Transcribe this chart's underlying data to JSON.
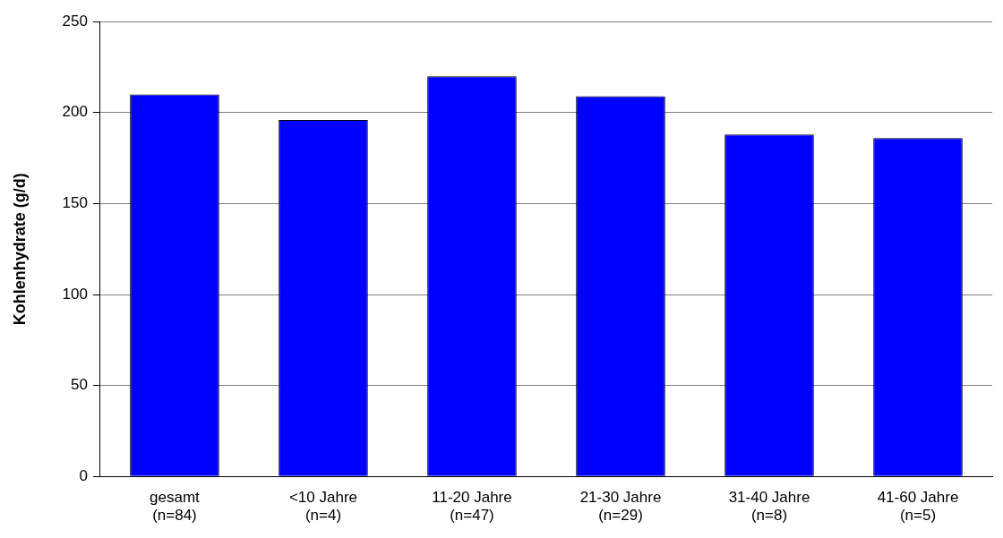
{
  "chart_data": {
    "type": "bar",
    "ylabel": "Kohlenhydrate (g/d)",
    "categories": [
      "gesamt\n(n=84)",
      "<10 Jahre\n(n=4)",
      "11-20 Jahre\n(n=47)",
      "21-30 Jahre\n(n=29)",
      "31-40 Jahre\n(n=8)",
      "41-60 Jahre\n(n=5)"
    ],
    "values": [
      210,
      196,
      220,
      209,
      188,
      186
    ],
    "color": "#0000ff",
    "ylim": [
      0,
      250
    ],
    "yticks": [
      0,
      50,
      100,
      150,
      200,
      250
    ],
    "grid": "y",
    "legend": false
  }
}
